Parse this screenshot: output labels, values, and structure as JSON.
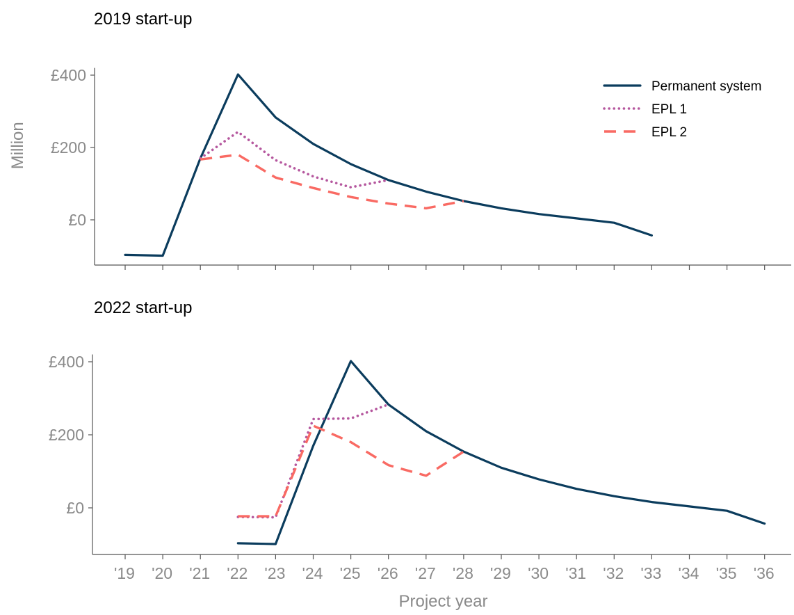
{
  "chart_data": [
    {
      "type": "line",
      "title": "2019 start-up",
      "xlabel": "",
      "ylabel": "Million",
      "ylim": [
        -120,
        420
      ],
      "y_ticks": [
        0,
        200,
        400
      ],
      "y_tick_labels": [
        "£0",
        "£200",
        "£400"
      ],
      "x_categories": [
        "'19",
        "'20",
        "'21",
        "'22",
        "'23",
        "'24",
        "'25",
        "'26",
        "'27",
        "'28",
        "'29",
        "'30",
        "'31",
        "'32",
        "'33",
        "'34",
        "'35",
        "'36"
      ],
      "x_tick_labels": [],
      "legend": {
        "position": "top-right",
        "entries": [
          "Permanent system",
          "EPL 1",
          "EPL 2"
        ]
      },
      "grid": false,
      "series": [
        {
          "name": "Permanent system",
          "color": "#0b3c5d",
          "style": "solid",
          "points": [
            [
              "'19",
              -97
            ],
            [
              "'20",
              -99
            ],
            [
              "'21",
              170
            ],
            [
              "'22",
              402
            ],
            [
              "'23",
              283
            ],
            [
              "'24",
              210
            ],
            [
              "'25",
              154
            ],
            [
              "'26",
              110
            ],
            [
              "'27",
              78
            ],
            [
              "'28",
              52
            ],
            [
              "'29",
              32
            ],
            [
              "'30",
              16
            ],
            [
              "'31",
              4
            ],
            [
              "'32",
              -8
            ],
            [
              "'33",
              -43
            ]
          ]
        },
        {
          "name": "EPL 1",
          "color": "#b5579e",
          "style": "dotted",
          "points": [
            [
              "'21",
              170
            ],
            [
              "'22",
              243
            ],
            [
              "'23",
              165
            ],
            [
              "'24",
              120
            ],
            [
              "'25",
              90
            ],
            [
              "'26",
              110
            ]
          ]
        },
        {
          "name": "EPL 2",
          "color": "#f96a63",
          "style": "dashed",
          "points": [
            [
              "'21",
              167
            ],
            [
              "'22",
              180
            ],
            [
              "'23",
              117
            ],
            [
              "'24",
              88
            ],
            [
              "'25",
              63
            ],
            [
              "'26",
              45
            ],
            [
              "'27",
              32
            ],
            [
              "'28",
              52
            ]
          ]
        }
      ]
    },
    {
      "type": "line",
      "title": "2022 start-up",
      "xlabel": "Project year",
      "ylabel": "",
      "ylim": [
        -125,
        420
      ],
      "y_ticks": [
        0,
        200,
        400
      ],
      "y_tick_labels": [
        "£0",
        "£200",
        "£400"
      ],
      "x_categories": [
        "'19",
        "'20",
        "'21",
        "'22",
        "'23",
        "'24",
        "'25",
        "'26",
        "'27",
        "'28",
        "'29",
        "'30",
        "'31",
        "'32",
        "'33",
        "'34",
        "'35",
        "'36"
      ],
      "x_tick_labels": [
        "'19",
        "'20",
        "'21",
        "'22",
        "'23",
        "'24",
        "'25",
        "'26",
        "'27",
        "'28",
        "'29",
        "'30",
        "'31",
        "'32",
        "'33",
        "'34",
        "'35",
        "'36"
      ],
      "grid": false,
      "series": [
        {
          "name": "Permanent system",
          "color": "#0b3c5d",
          "style": "solid",
          "points": [
            [
              "'22",
              -97
            ],
            [
              "'23",
              -99
            ],
            [
              "'24",
              170
            ],
            [
              "'25",
              402
            ],
            [
              "'26",
              283
            ],
            [
              "'27",
              210
            ],
            [
              "'28",
              154
            ],
            [
              "'29",
              110
            ],
            [
              "'30",
              78
            ],
            [
              "'31",
              52
            ],
            [
              "'32",
              32
            ],
            [
              "'33",
              16
            ],
            [
              "'34",
              4
            ],
            [
              "'35",
              -8
            ],
            [
              "'36",
              -43
            ]
          ]
        },
        {
          "name": "EPL 1",
          "color": "#b5579e",
          "style": "dotted",
          "points": [
            [
              "'22",
              -25
            ],
            [
              "'23",
              -26
            ],
            [
              "'24",
              243
            ],
            [
              "'25",
              245
            ],
            [
              "'26",
              283
            ]
          ]
        },
        {
          "name": "EPL 2",
          "color": "#f96a63",
          "style": "dashed",
          "points": [
            [
              "'22",
              -23
            ],
            [
              "'23",
              -23
            ],
            [
              "'24",
              225
            ],
            [
              "'25",
              180
            ],
            [
              "'26",
              117
            ],
            [
              "'27",
              88
            ],
            [
              "'28",
              154
            ]
          ]
        }
      ]
    }
  ]
}
